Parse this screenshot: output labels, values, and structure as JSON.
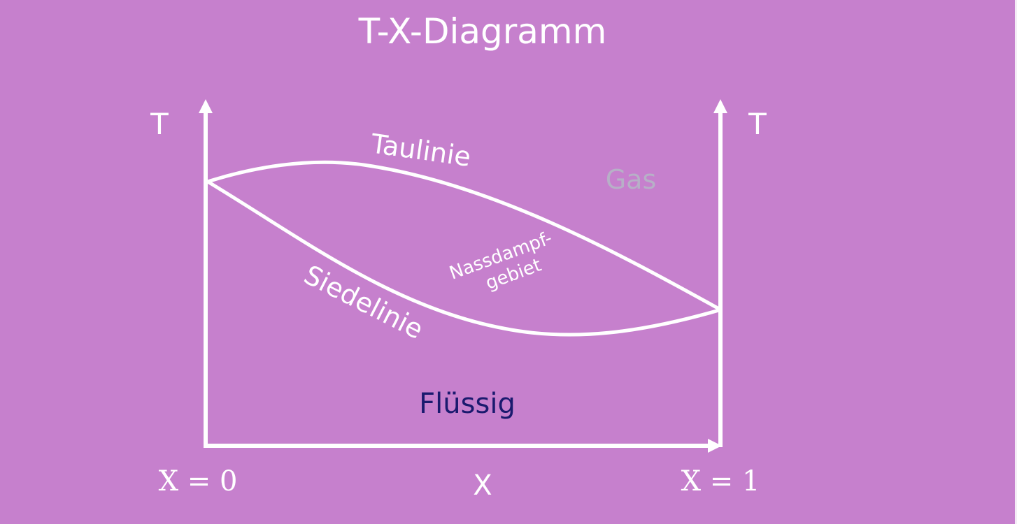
{
  "title": "T-X-Diagramm",
  "axes": {
    "y_left_label": "T",
    "y_right_label": "T",
    "x_label": "X",
    "x_left_tick": "X = 0",
    "x_right_tick": "X = 1"
  },
  "curves": {
    "dew_line": "Taulinie",
    "boiling_line": "Siedelinie"
  },
  "regions": {
    "gas": "Gas",
    "wet_steam_line1": "Nassdampf-",
    "wet_steam_line2": "gebiet",
    "liquid": "Flüssig"
  },
  "colors": {
    "background": "#c680cd",
    "lines": "#ffffff",
    "gas_label": "#b7b0c7",
    "liquid_label": "#1a1a6e"
  }
}
